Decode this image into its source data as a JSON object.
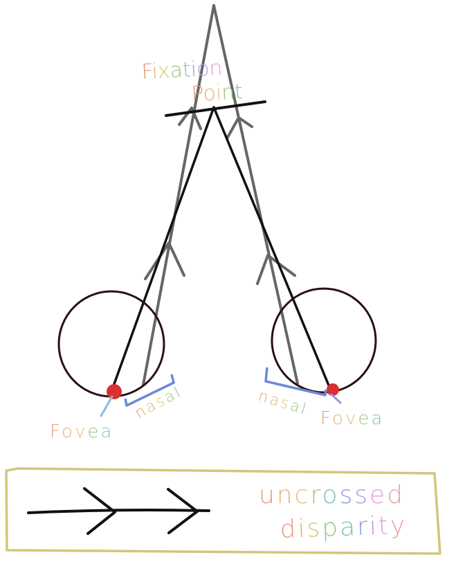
{
  "labels": {
    "fixation": [
      "F",
      "i",
      "x",
      "a",
      "t",
      "i",
      "o",
      "n"
    ],
    "point": [
      "P",
      "o",
      "i",
      "n",
      "t"
    ],
    "fovea_left": [
      "F",
      "o",
      "v",
      "e",
      "a"
    ],
    "fovea_right": [
      "F",
      "o",
      "v",
      "e",
      "a"
    ],
    "nasal_left": [
      "n",
      "a",
      "s",
      "a",
      "l"
    ],
    "nasal_right": [
      "n",
      "a",
      "s",
      "a",
      "l"
    ],
    "legend_line1": [
      "u",
      "n",
      "c",
      "r",
      "o",
      "s",
      "s",
      "e",
      "d"
    ],
    "legend_line2": [
      "d",
      "i",
      "s",
      "p",
      "a",
      "r",
      "i",
      "t",
      "y"
    ]
  },
  "colors": {
    "black_line": "#111111",
    "gray_line": "#666666",
    "eye_outline": "#2b1010",
    "fovea_dot": "#d93030",
    "nasal_bracket": "#6f88d8",
    "legend_box": "#d2c67a",
    "rainbow": [
      "#e59b7a",
      "#e2b07a",
      "#d8c86c",
      "#9cc77a",
      "#7ec2c0",
      "#8d9fe0",
      "#b79be0",
      "#e59fd0",
      "#e8a0a0"
    ]
  }
}
